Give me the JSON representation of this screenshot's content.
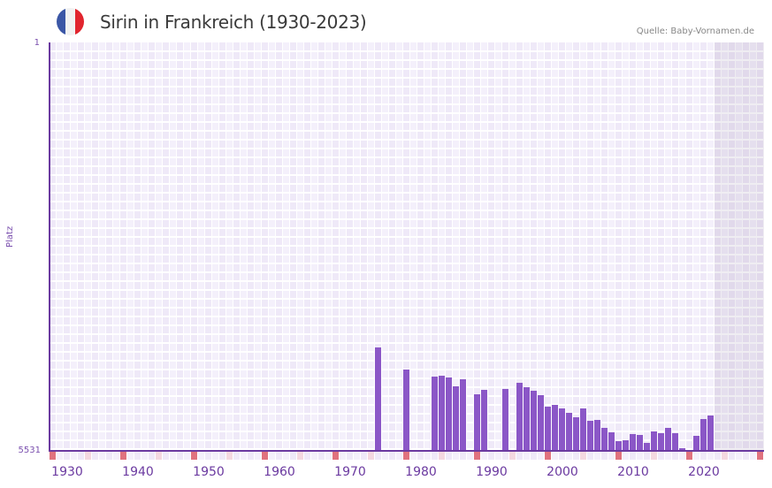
{
  "header": {
    "title": "Sirin in Frankreich (1930-2023)",
    "source": "Quelle: Baby-Vornamen.de",
    "flag": {
      "name": "france-flag-icon",
      "colors": [
        "#3b57a6",
        "#f2f2f2",
        "#e1252e"
      ]
    }
  },
  "colors": {
    "bar": "#8b57c7",
    "axis": "#6b3aa0",
    "grid_col_a": "#efe9f8",
    "grid_col_b": "#f4f0fb",
    "decade_marker": "#e0727e",
    "half_decade_marker": "#f4d8e0"
  },
  "chart_data": {
    "type": "bar",
    "title": "Sirin in Frankreich (1930-2023)",
    "xlabel": "",
    "ylabel": "Platz",
    "y_inverted": true,
    "ylim": [
      5531,
      1
    ],
    "y_ticks": [
      "1",
      "5531"
    ],
    "x_ticks": [
      "1930",
      "1940",
      "1950",
      "1960",
      "1970",
      "1980",
      "1990",
      "2000",
      "2010",
      "2020"
    ],
    "x_range": [
      1928,
      2028
    ],
    "shaded_future_from": 2022,
    "grid": true,
    "categories": [
      1974,
      1978,
      1982,
      1983,
      1984,
      1985,
      1986,
      1988,
      1989,
      1992,
      1994,
      1995,
      1996,
      1997,
      1998,
      1999,
      2000,
      2001,
      2002,
      2003,
      2004,
      2005,
      2006,
      2007,
      2008,
      2009,
      2010,
      2011,
      2012,
      2013,
      2014,
      2015,
      2016,
      2017,
      2019,
      2020,
      2021
    ],
    "values": [
      4131,
      4432,
      4528,
      4516,
      4540,
      4660,
      4564,
      4768,
      4708,
      4696,
      4612,
      4672,
      4720,
      4780,
      4937,
      4913,
      4961,
      5021,
      5081,
      4961,
      5129,
      5117,
      5225,
      5285,
      5405,
      5393,
      5309,
      5321,
      5429,
      5273,
      5297,
      5225,
      5297,
      5489,
      5333,
      5105,
      5057
    ]
  },
  "axis": {
    "y_top": "1",
    "y_bottom": "5531",
    "y_label": "Platz"
  }
}
